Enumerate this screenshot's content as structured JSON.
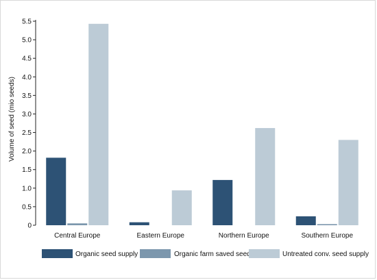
{
  "chart_data": {
    "type": "bar",
    "categories": [
      "Central Europe",
      "Eastern Europe",
      "Northern Europe",
      "Southern Europe"
    ],
    "series": [
      {
        "name": "Organic seed supply",
        "color": "#2d5275",
        "values": [
          1.82,
          0.08,
          1.22,
          0.24
        ]
      },
      {
        "name": "Organic farm saved seed",
        "color": "#7c97ad",
        "values": [
          0.05,
          0.0,
          0.0,
          0.03
        ]
      },
      {
        "name": "Untreated conv. seed supply",
        "color": "#bccbd6",
        "values": [
          5.43,
          0.94,
          2.62,
          2.3
        ]
      }
    ],
    "ylabel": "Volume of seed (mio seeds)",
    "xlabel": "",
    "title": "",
    "ylim": [
      0,
      5.5
    ],
    "yticks": [
      0,
      0.5,
      1.0,
      1.5,
      2.0,
      2.5,
      3.0,
      3.5,
      4.0,
      4.5,
      5.0,
      5.5
    ],
    "ytick_labels": [
      "0",
      "0.5",
      "1.0",
      "1.5",
      "2.0",
      "2.5",
      "3.0",
      "3.5",
      "4.0",
      "4.5",
      "5.0",
      "5.5"
    ],
    "grid": false,
    "legend_position": "bottom"
  }
}
